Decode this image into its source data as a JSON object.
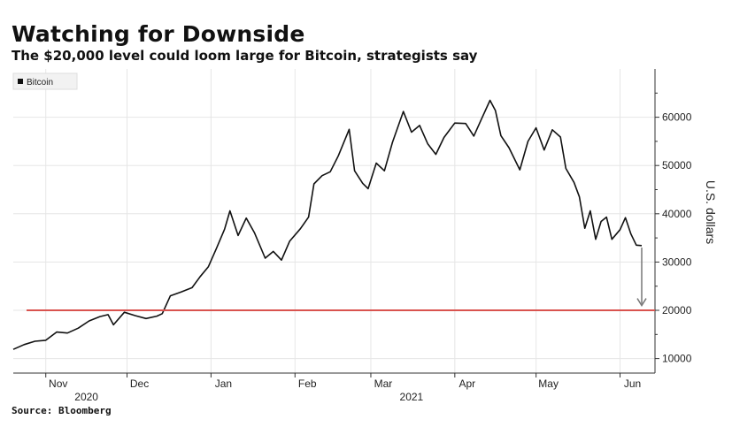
{
  "title": "Watching for Downside",
  "subtitle": "The $20,000 level could loom large for Bitcoin, strategists say",
  "source": "Source: Bloomberg",
  "chart_data": {
    "type": "line",
    "title": "Watching for Downside",
    "subtitle": "The $20,000 level could loom large for Bitcoin, strategists say",
    "ylabel": "U.S. dollars",
    "xlabel": "",
    "x_range": [
      "2020-10-20",
      "2021-06-09"
    ],
    "ylim": [
      7000,
      70000
    ],
    "y_axis_position": "right",
    "yticks": [
      10000,
      20000,
      30000,
      40000,
      50000,
      60000
    ],
    "ytick_labels": [
      "10000",
      "20000",
      "30000",
      "40000",
      "50000",
      "60000"
    ],
    "xticks": [
      {
        "x": "2020-11-01",
        "label": "Nov"
      },
      {
        "x": "2020-12-01",
        "label": "Dec"
      },
      {
        "x": "2021-01-01",
        "label": "Jan"
      },
      {
        "x": "2021-02-01",
        "label": "Feb"
      },
      {
        "x": "2021-03-01",
        "label": "Mar"
      },
      {
        "x": "2021-04-01",
        "label": "Apr"
      },
      {
        "x": "2021-05-01",
        "label": "May"
      },
      {
        "x": "2021-06-01",
        "label": "Jun"
      }
    ],
    "year_labels": [
      {
        "x": "2020-11-16",
        "label": "2020"
      },
      {
        "x": "2021-03-16",
        "label": "2021"
      }
    ],
    "grid": true,
    "legend": "top-left",
    "series": [
      {
        "name": "Bitcoin",
        "color": "#111111",
        "points": [
          [
            "2020-10-20",
            11900
          ],
          [
            "2020-10-24",
            12900
          ],
          [
            "2020-10-28",
            13600
          ],
          [
            "2020-11-01",
            13800
          ],
          [
            "2020-11-05",
            15500
          ],
          [
            "2020-11-09",
            15300
          ],
          [
            "2020-11-13",
            16300
          ],
          [
            "2020-11-17",
            17800
          ],
          [
            "2020-11-21",
            18700
          ],
          [
            "2020-11-24",
            19100
          ],
          [
            "2020-11-26",
            17000
          ],
          [
            "2020-11-30",
            19600
          ],
          [
            "2020-12-04",
            18900
          ],
          [
            "2020-12-08",
            18300
          ],
          [
            "2020-12-12",
            18800
          ],
          [
            "2020-12-14",
            19300
          ],
          [
            "2020-12-17",
            23000
          ],
          [
            "2020-12-21",
            23800
          ],
          [
            "2020-12-25",
            24700
          ],
          [
            "2020-12-28",
            27000
          ],
          [
            "2020-12-31",
            29000
          ],
          [
            "2021-01-03",
            32800
          ],
          [
            "2021-01-06",
            36800
          ],
          [
            "2021-01-08",
            40600
          ],
          [
            "2021-01-11",
            35500
          ],
          [
            "2021-01-14",
            39100
          ],
          [
            "2021-01-17",
            36100
          ],
          [
            "2021-01-21",
            30800
          ],
          [
            "2021-01-24",
            32200
          ],
          [
            "2021-01-27",
            30400
          ],
          [
            "2021-01-30",
            34300
          ],
          [
            "2021-02-03",
            36900
          ],
          [
            "2021-02-06",
            39300
          ],
          [
            "2021-02-08",
            46200
          ],
          [
            "2021-02-11",
            47900
          ],
          [
            "2021-02-14",
            48700
          ],
          [
            "2021-02-17",
            52000
          ],
          [
            "2021-02-21",
            57500
          ],
          [
            "2021-02-23",
            48900
          ],
          [
            "2021-02-26",
            46300
          ],
          [
            "2021-02-28",
            45200
          ],
          [
            "2021-03-03",
            50500
          ],
          [
            "2021-03-06",
            48900
          ],
          [
            "2021-03-09",
            54800
          ],
          [
            "2021-03-13",
            61200
          ],
          [
            "2021-03-16",
            56900
          ],
          [
            "2021-03-19",
            58300
          ],
          [
            "2021-03-22",
            54500
          ],
          [
            "2021-03-25",
            52300
          ],
          [
            "2021-03-28",
            55800
          ],
          [
            "2021-04-01",
            58800
          ],
          [
            "2021-04-05",
            58700
          ],
          [
            "2021-04-08",
            56100
          ],
          [
            "2021-04-11",
            59800
          ],
          [
            "2021-04-14",
            63500
          ],
          [
            "2021-04-16",
            61400
          ],
          [
            "2021-04-18",
            56200
          ],
          [
            "2021-04-21",
            53700
          ],
          [
            "2021-04-25",
            49100
          ],
          [
            "2021-04-28",
            55000
          ],
          [
            "2021-05-01",
            57800
          ],
          [
            "2021-05-04",
            53200
          ],
          [
            "2021-05-07",
            57400
          ],
          [
            "2021-05-10",
            55900
          ],
          [
            "2021-05-12",
            49400
          ],
          [
            "2021-05-15",
            46500
          ],
          [
            "2021-05-17",
            43500
          ],
          [
            "2021-05-19",
            37000
          ],
          [
            "2021-05-21",
            40600
          ],
          [
            "2021-05-23",
            34700
          ],
          [
            "2021-05-25",
            38400
          ],
          [
            "2021-05-27",
            39300
          ],
          [
            "2021-05-29",
            34700
          ],
          [
            "2021-06-01",
            36700
          ],
          [
            "2021-06-03",
            39200
          ],
          [
            "2021-06-05",
            35800
          ],
          [
            "2021-06-07",
            33500
          ],
          [
            "2021-06-09",
            33400
          ]
        ]
      }
    ],
    "annotations": [
      {
        "type": "horizontal_line",
        "y": 20000,
        "color": "#d9534f"
      },
      {
        "type": "arrow",
        "from": [
          "2021-06-09",
          33000
        ],
        "to": [
          "2021-06-09",
          21000
        ],
        "color": "#777777"
      }
    ]
  }
}
